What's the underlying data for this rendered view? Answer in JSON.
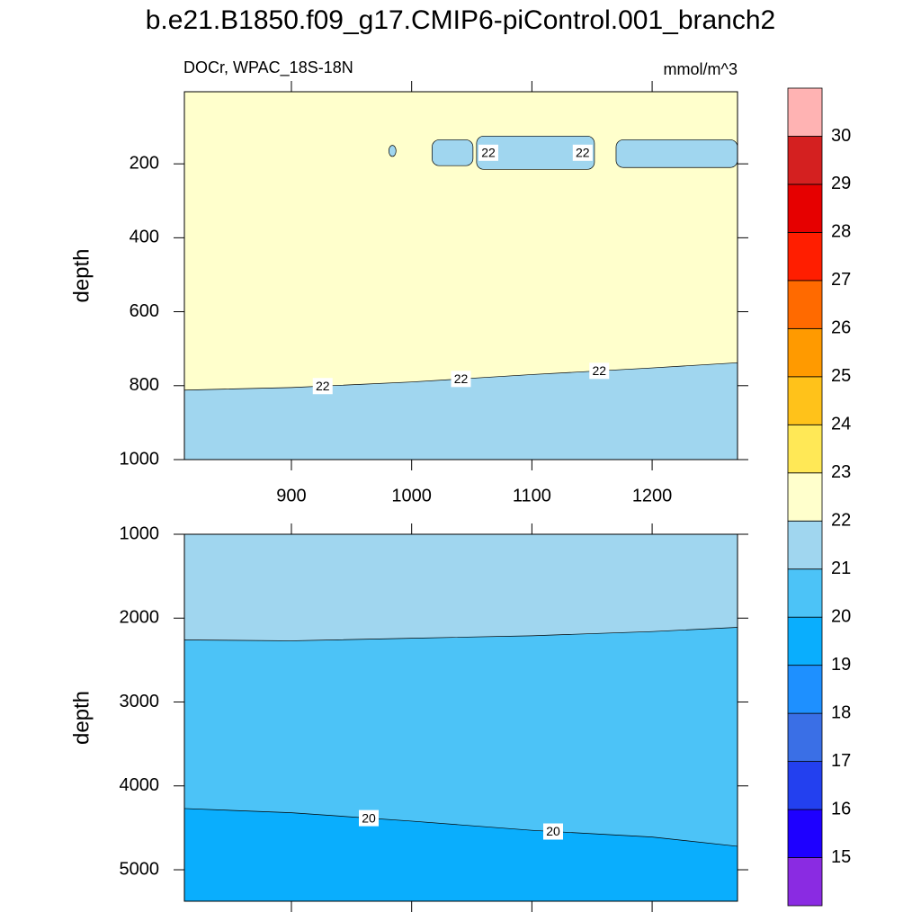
{
  "chart_data": {
    "type": "contour",
    "title": "b.e21.B1850.f09_g17.CMIP6-piControl.001_branch2",
    "subtitle_left": "DOCr, WPAC_18S-18N",
    "subtitle_right": "mmol/m^3",
    "xlim": [
      811,
      1271
    ],
    "xticks": [
      900,
      1000,
      1100,
      1200
    ],
    "colorbar": {
      "levels": [
        15,
        16,
        17,
        18,
        19,
        20,
        21,
        22,
        23,
        24,
        25,
        26,
        27,
        28,
        29,
        30
      ],
      "colors": [
        "#8a2be2",
        "#1e00ff",
        "#2340ef",
        "#3a6fe6",
        "#1e90ff",
        "#0aaefd",
        "#4cc3f7",
        "#a0d6ef",
        "#ffffcc",
        "#ffe856",
        "#ffc21a",
        "#ff9a00",
        "#ff6a00",
        "#ff1e00",
        "#e60000",
        "#d42020",
        "#ffb3b3"
      ]
    },
    "panels": [
      {
        "ylabel": "depth",
        "ylim": [
          5,
          1000
        ],
        "yticks": [
          200,
          400,
          600,
          800,
          1000
        ],
        "show_xtick_labels": true,
        "regions": [
          22,
          21
        ],
        "contours": [
          {
            "level": 22,
            "labels": [
              "22",
              "22",
              "22"
            ],
            "x": [
              811,
              900,
              1000,
              1100,
              1200,
              1271
            ],
            "y": [
              812,
              805,
              790,
              770,
              752,
              738
            ]
          }
        ],
        "patches": [
          {
            "level": 21,
            "x": [
              981,
              987
            ],
            "y": [
              150,
              180
            ]
          },
          {
            "level": 21,
            "x": [
              1017,
              1051
            ],
            "y": [
              135,
              205
            ]
          },
          {
            "level": 21,
            "labels": [
              "22",
              "22"
            ],
            "x": [
              1054,
              1152
            ],
            "y": [
              125,
              215
            ]
          },
          {
            "level": 21,
            "x": [
              1170,
              1271
            ],
            "y": [
              135,
              210
            ]
          }
        ]
      },
      {
        "ylabel": "depth",
        "ylim": [
          1000,
          5375
        ],
        "yticks": [
          1000,
          2000,
          3000,
          4000,
          5000
        ],
        "show_xtick_labels": false,
        "regions": [
          21,
          20,
          19
        ],
        "contours": [
          {
            "level": 21,
            "x": [
              811,
              900,
              1000,
              1100,
              1200,
              1271
            ],
            "y": [
              2260,
              2270,
              2240,
              2210,
              2160,
              2110
            ]
          },
          {
            "level": 20,
            "labels": [
              "20",
              "20"
            ],
            "x": [
              811,
              900,
              1000,
              1100,
              1200,
              1271
            ],
            "y": [
              4270,
              4320,
              4420,
              4530,
              4610,
              4720
            ]
          }
        ],
        "patches": []
      }
    ]
  }
}
